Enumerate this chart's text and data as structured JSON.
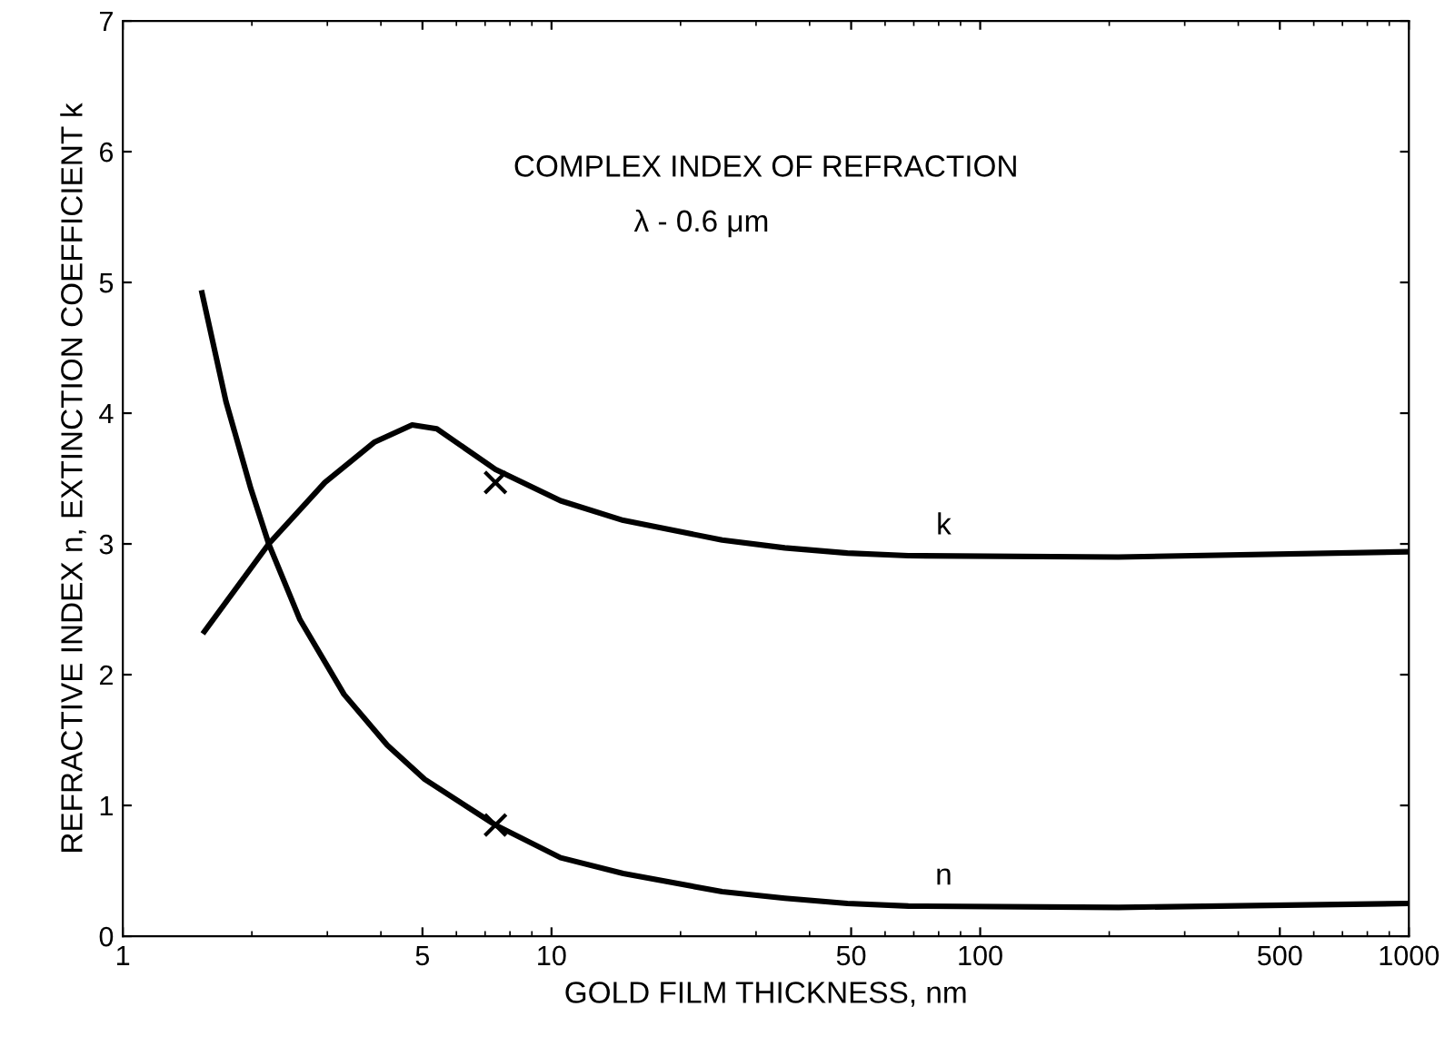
{
  "chart_data": {
    "type": "line",
    "title": "COMPLEX INDEX OF REFRACTION",
    "subtitle": "λ - 0.6 μm",
    "xlabel": "GOLD FILM THICKNESS, nm",
    "ylabel": "REFRACTIVE INDEX n, EXTINCTION COEFFICIENT k",
    "log": "x",
    "xlim": [
      1,
      1000
    ],
    "ylim": [
      0,
      7
    ],
    "xticks": [
      1,
      5,
      10,
      50,
      100,
      500,
      1000
    ],
    "yticks": [
      0,
      1,
      2,
      3,
      4,
      5,
      6,
      7
    ],
    "grid": false,
    "legend": false,
    "marker": "none",
    "line_style": "solid",
    "series": [
      {
        "name": "n",
        "color": "#000000",
        "x": [
          1.53,
          1.74,
          1.99,
          2.19,
          2.59,
          3.28,
          4.14,
          5.06,
          7.4,
          10.5,
          14.7,
          25,
          35,
          49,
          68,
          210,
          1000
        ],
        "values": [
          4.92,
          4.09,
          3.42,
          3.0,
          2.42,
          1.85,
          1.46,
          1.2,
          0.85,
          0.6,
          0.48,
          0.34,
          0.29,
          0.25,
          0.23,
          0.22,
          0.25
        ]
      },
      {
        "name": "k",
        "color": "#000000",
        "x": [
          1.55,
          2.19,
          2.96,
          3.87,
          4.73,
          5.4,
          7.4,
          10.5,
          14.7,
          25,
          35,
          49,
          68,
          210,
          1000
        ],
        "values": [
          2.33,
          3.0,
          3.47,
          3.78,
          3.91,
          3.88,
          3.57,
          3.33,
          3.18,
          3.03,
          2.97,
          2.93,
          2.91,
          2.9,
          2.94
        ]
      },
      {
        "type": "scatter",
        "marker": "cross",
        "color": "#000000",
        "x": [
          7.4,
          7.4
        ],
        "values": [
          3.47,
          0.85
        ]
      }
    ]
  }
}
